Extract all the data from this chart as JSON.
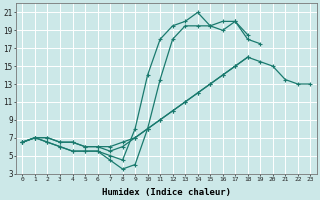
{
  "xlabel": "Humidex (Indice chaleur)",
  "bg_color": "#cce8e8",
  "grid_color": "#ffffff",
  "line_color": "#1a7a6e",
  "xlim": [
    -0.5,
    23.5
  ],
  "ylim": [
    3,
    22
  ],
  "xticks": [
    0,
    1,
    2,
    3,
    4,
    5,
    6,
    7,
    8,
    9,
    10,
    11,
    12,
    13,
    14,
    15,
    16,
    17,
    18,
    19,
    20,
    21,
    22,
    23
  ],
  "yticks": [
    3,
    5,
    7,
    9,
    11,
    13,
    15,
    17,
    19,
    21
  ],
  "series": [
    {
      "x": [
        0,
        1,
        2,
        3,
        4,
        5,
        6,
        7,
        8,
        9,
        10,
        11,
        12,
        13,
        14,
        15,
        16,
        17,
        18,
        19
      ],
      "y": [
        6.5,
        7,
        6.5,
        6,
        5.5,
        5.5,
        5.5,
        4.5,
        3.5,
        4,
        8,
        13.5,
        18,
        19.5,
        19.5,
        19.5,
        19,
        20,
        18,
        17.5
      ]
    },
    {
      "x": [
        0,
        1,
        2,
        3,
        4,
        5,
        6,
        7,
        8,
        9,
        10,
        11,
        12,
        13,
        14,
        15,
        16,
        17,
        18
      ],
      "y": [
        6.5,
        7,
        6.5,
        6,
        5.5,
        5.5,
        5.5,
        5,
        4.5,
        8,
        14,
        18,
        19.5,
        20,
        21,
        19.5,
        20,
        20,
        18.5
      ]
    },
    {
      "x": [
        0,
        1,
        2,
        3,
        4,
        5,
        6,
        7,
        8,
        9,
        10,
        11,
        12,
        13,
        14,
        15,
        16,
        17,
        18
      ],
      "y": [
        6.5,
        7,
        7,
        6.5,
        6.5,
        6,
        6,
        6,
        6.5,
        7,
        8,
        9,
        10,
        11,
        12,
        13,
        14,
        15,
        16
      ]
    },
    {
      "x": [
        0,
        1,
        2,
        3,
        4,
        5,
        6,
        7,
        8,
        9,
        10,
        11,
        12,
        13,
        14,
        15,
        16,
        17,
        18,
        19,
        20,
        21,
        22,
        23
      ],
      "y": [
        6.5,
        7,
        7,
        6.5,
        6.5,
        6,
        6,
        5.5,
        6,
        7,
        8,
        9,
        10,
        11,
        12,
        13,
        14,
        15,
        16,
        15.5,
        15,
        13.5,
        13,
        13
      ]
    }
  ]
}
